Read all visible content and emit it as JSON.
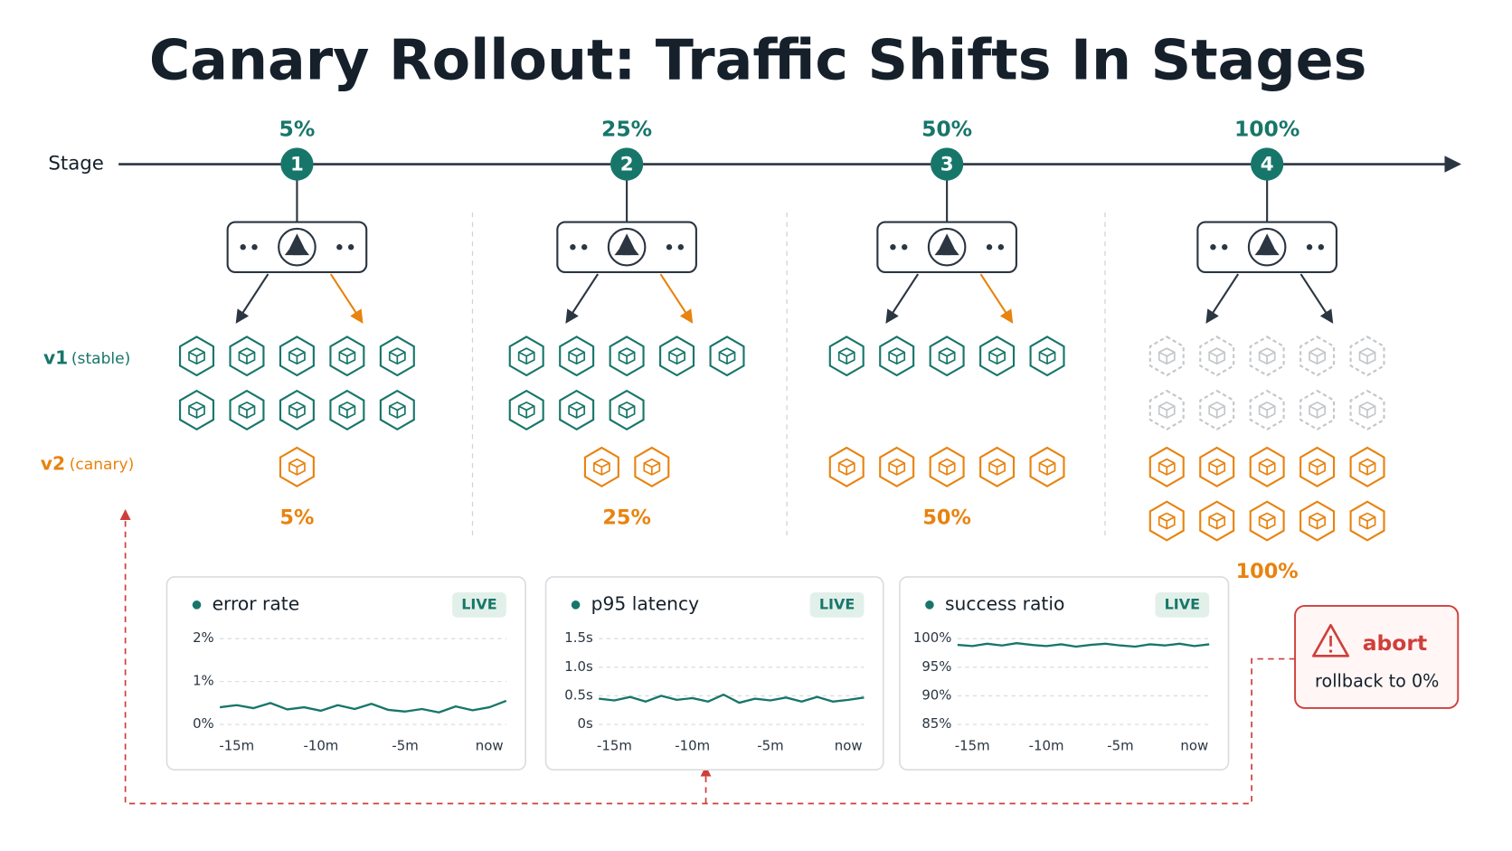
{
  "title": "Canary Rollout: Traffic Shifts In Stages",
  "axis_label": "Stage",
  "legend": {
    "v1": {
      "name": "v1",
      "note": "(stable)"
    },
    "v2": {
      "name": "v2",
      "note": "(canary)"
    }
  },
  "stages": [
    {
      "step": 1,
      "traffic": 5,
      "traffic_label": "5%",
      "v1_instances": 10,
      "v1_retired": 0,
      "v2_instances": 1
    },
    {
      "step": 2,
      "traffic": 25,
      "traffic_label": "25%",
      "v1_instances": 8,
      "v1_retired": 0,
      "v2_instances": 2
    },
    {
      "step": 3,
      "traffic": 50,
      "traffic_label": "50%",
      "v1_instances": 5,
      "v1_retired": 0,
      "v2_instances": 5
    },
    {
      "step": 4,
      "traffic": 100,
      "traffic_label": "100%",
      "v1_instances": 0,
      "v1_retired": 10,
      "v2_instances": 10
    }
  ],
  "panels": [
    {
      "type": "line",
      "title": "error rate",
      "badge": "LIVE",
      "ylim": [
        0,
        2
      ],
      "yticks": [
        {
          "value": 0,
          "label": "0%"
        },
        {
          "value": 1,
          "label": "1%"
        },
        {
          "value": 2,
          "label": "2%"
        }
      ],
      "xlim": [
        -16,
        1
      ],
      "xticks": [
        {
          "value": -15,
          "label": "-15m"
        },
        {
          "value": -10,
          "label": "-10m"
        },
        {
          "value": -5,
          "label": "-5m"
        },
        {
          "value": 0,
          "label": "now"
        }
      ],
      "x": [
        -16,
        -15,
        -14,
        -13,
        -12,
        -11,
        -10,
        -9,
        -8,
        -7,
        -6,
        -5,
        -4,
        -3,
        -2,
        -1,
        0,
        1
      ],
      "values": [
        0.4,
        0.45,
        0.38,
        0.5,
        0.35,
        0.4,
        0.32,
        0.45,
        0.36,
        0.48,
        0.34,
        0.3,
        0.36,
        0.28,
        0.42,
        0.33,
        0.4,
        0.55
      ]
    },
    {
      "type": "line",
      "title": "p95 latency",
      "badge": "LIVE",
      "ylim": [
        0,
        1.5
      ],
      "yticks": [
        {
          "value": 0,
          "label": "0s"
        },
        {
          "value": 0.5,
          "label": "0.5s"
        },
        {
          "value": 1,
          "label": "1.0s"
        },
        {
          "value": 1.5,
          "label": "1.5s"
        }
      ],
      "xlim": [
        -16,
        1
      ],
      "xticks": [
        {
          "value": -15,
          "label": "-15m"
        },
        {
          "value": -10,
          "label": "-10m"
        },
        {
          "value": -5,
          "label": "-5m"
        },
        {
          "value": 0,
          "label": "now"
        }
      ],
      "x": [
        -16,
        -15,
        -14,
        -13,
        -12,
        -11,
        -10,
        -9,
        -8,
        -7,
        -6,
        -5,
        -4,
        -3,
        -2,
        -1,
        0,
        1
      ],
      "values": [
        0.45,
        0.42,
        0.48,
        0.4,
        0.5,
        0.43,
        0.46,
        0.4,
        0.52,
        0.38,
        0.45,
        0.42,
        0.47,
        0.4,
        0.48,
        0.4,
        0.43,
        0.47
      ]
    },
    {
      "type": "line",
      "title": "success ratio",
      "badge": "LIVE",
      "ylim": [
        85,
        100
      ],
      "yticks": [
        {
          "value": 85,
          "label": "85%"
        },
        {
          "value": 90,
          "label": "90%"
        },
        {
          "value": 95,
          "label": "95%"
        },
        {
          "value": 100,
          "label": "100%"
        }
      ],
      "xlim": [
        -16,
        1
      ],
      "xticks": [
        {
          "value": -15,
          "label": "-15m"
        },
        {
          "value": -10,
          "label": "-10m"
        },
        {
          "value": -5,
          "label": "-5m"
        },
        {
          "value": 0,
          "label": "now"
        }
      ],
      "x": [
        -16,
        -15,
        -14,
        -13,
        -12,
        -11,
        -10,
        -9,
        -8,
        -7,
        -6,
        -5,
        -4,
        -3,
        -2,
        -1,
        0,
        1
      ],
      "values": [
        98.9,
        98.7,
        99.1,
        98.8,
        99.2,
        98.9,
        98.7,
        99.0,
        98.6,
        98.9,
        99.1,
        98.8,
        98.6,
        99.0,
        98.8,
        99.1,
        98.7,
        99.0
      ]
    }
  ],
  "abort": {
    "title": "abort",
    "text": "rollback to 0%"
  }
}
